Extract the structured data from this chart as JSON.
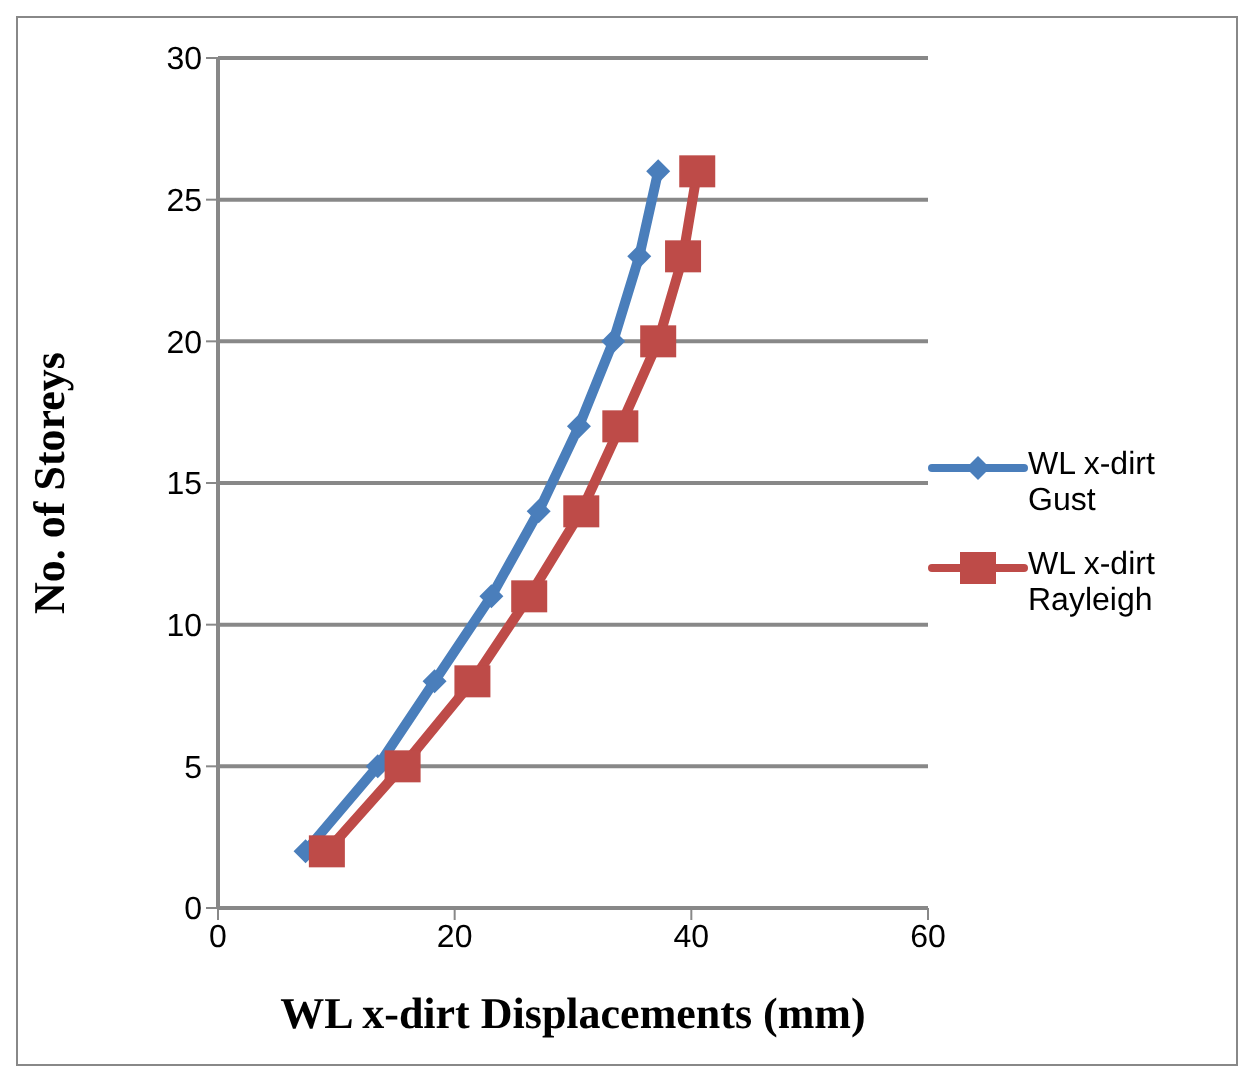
{
  "chart_data": {
    "type": "line",
    "xlabel": "WL x-dirt  Displacements (mm)",
    "ylabel": "No. of Storeys",
    "series": [
      {
        "name": "WL x-dirt Gust",
        "color": "#4a7ebb",
        "marker": "diamond",
        "x": [
          7.4,
          13.5,
          18.3,
          23.1,
          27.1,
          30.5,
          33.4,
          35.6,
          37.2
        ],
        "values": [
          2,
          5,
          8,
          11,
          14,
          17,
          20,
          23,
          26
        ]
      },
      {
        "name": "WL x-dirt Rayleigh",
        "color": "#be4b48",
        "marker": "square",
        "x": [
          9.2,
          15.6,
          21.5,
          26.3,
          30.7,
          34.0,
          37.2,
          39.3,
          40.5
        ],
        "values": [
          2,
          5,
          8,
          11,
          14,
          17,
          20,
          23,
          26
        ]
      }
    ],
    "xlim": [
      0,
      60
    ],
    "xticks": [
      0,
      20,
      40,
      60
    ],
    "ylim": [
      0,
      30
    ],
    "yticks": [
      0,
      5,
      10,
      15,
      20,
      25,
      30
    ],
    "grid": "y",
    "legend": "right"
  }
}
